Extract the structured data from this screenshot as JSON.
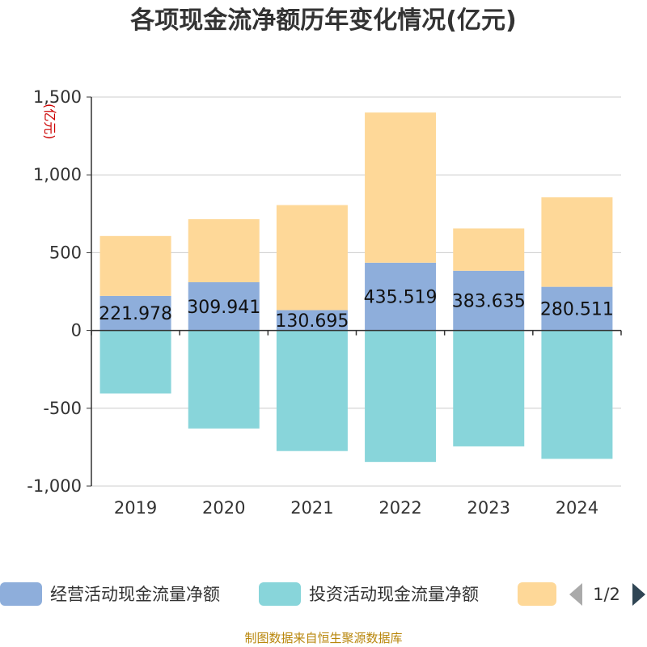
{
  "source_text": "制图数据来自恒生聚源数据库",
  "chart_data": {
    "type": "bar",
    "stacked": true,
    "title": "各项现金流净额历年变化情况(亿元)",
    "ylabel": "(亿元)",
    "xlabel": "",
    "ylim": [
      -1000,
      1500
    ],
    "yticks": [
      -1000,
      -500,
      0,
      500,
      1000,
      1500
    ],
    "ytick_labels": [
      "-1,000",
      "-500",
      "0",
      "500",
      "1,000",
      "1,500"
    ],
    "grid": true,
    "legend_position": "bottom",
    "legend_page": "1/2",
    "categories": [
      "2019",
      "2020",
      "2021",
      "2022",
      "2023",
      "2024"
    ],
    "series": [
      {
        "name": "经营活动现金流量净额",
        "color": "#8eaedb",
        "values": [
          221.978,
          309.941,
          130.695,
          435.519,
          383.635,
          280.511
        ],
        "labels": [
          "221.978",
          "309.941",
          "130.695",
          "435.519",
          "383.635",
          "280.511"
        ]
      },
      {
        "name": "投资活动现金流量净额",
        "color": "#88d5da",
        "values": [
          -405,
          -630,
          -775,
          -845,
          -745,
          -825
        ]
      },
      {
        "name": "",
        "color": "#fed898",
        "values": [
          385,
          405,
          675,
          965,
          272,
          575
        ]
      }
    ]
  }
}
